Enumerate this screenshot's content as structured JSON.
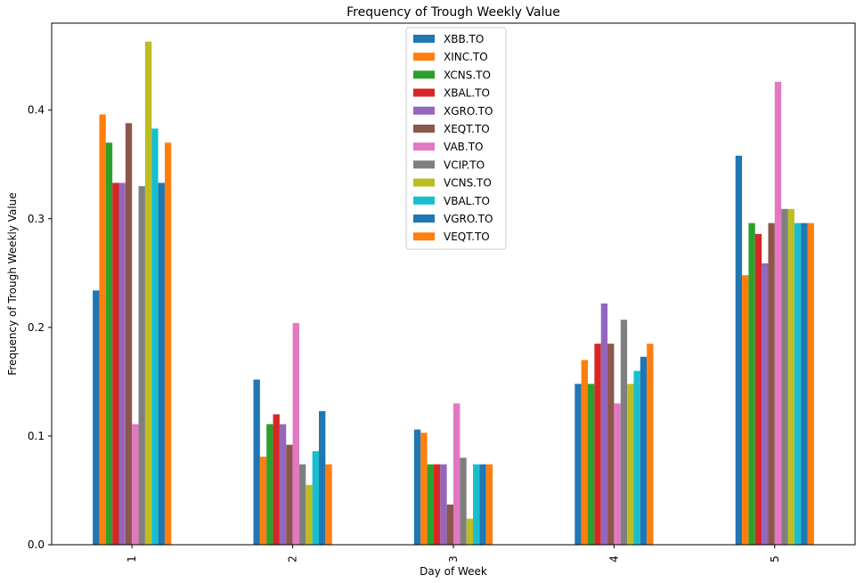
{
  "chart_data": {
    "type": "bar",
    "title": "Frequency of Trough Weekly Value",
    "xlabel": "Day of Week",
    "ylabel": "Frequency of Trough Weekly Value",
    "categories": [
      "1",
      "2",
      "3",
      "4",
      "5"
    ],
    "ylim": [
      0,
      0.48
    ],
    "yticks": [
      "0.0",
      "0.1",
      "0.2",
      "0.3",
      "0.4"
    ],
    "grid": false,
    "legend_position": "top-center",
    "series": [
      {
        "name": "XBB.TO",
        "color": "#1f77b4",
        "values": [
          0.234,
          0.152,
          0.106,
          0.148,
          0.358
        ]
      },
      {
        "name": "XINC.TO",
        "color": "#ff7f0e",
        "values": [
          0.396,
          0.081,
          0.103,
          0.17,
          0.248
        ]
      },
      {
        "name": "XCNS.TO",
        "color": "#2ca02c",
        "values": [
          0.37,
          0.111,
          0.074,
          0.148,
          0.296
        ]
      },
      {
        "name": "XBAL.TO",
        "color": "#d62728",
        "values": [
          0.333,
          0.12,
          0.074,
          0.185,
          0.286
        ]
      },
      {
        "name": "XGRO.TO",
        "color": "#9467bd",
        "values": [
          0.333,
          0.111,
          0.074,
          0.222,
          0.259
        ]
      },
      {
        "name": "XEQT.TO",
        "color": "#8c564b",
        "values": [
          0.388,
          0.092,
          0.037,
          0.185,
          0.296
        ]
      },
      {
        "name": "VAB.TO",
        "color": "#e377c2",
        "values": [
          0.111,
          0.204,
          0.13,
          0.13,
          0.426
        ]
      },
      {
        "name": "VCIP.TO",
        "color": "#7f7f7f",
        "values": [
          0.33,
          0.074,
          0.08,
          0.207,
          0.309
        ]
      },
      {
        "name": "VCNS.TO",
        "color": "#bcbd22",
        "values": [
          0.463,
          0.055,
          0.024,
          0.148,
          0.309
        ]
      },
      {
        "name": "VBAL.TO",
        "color": "#17becf",
        "values": [
          0.383,
          0.086,
          0.074,
          0.16,
          0.296
        ]
      },
      {
        "name": "VGRO.TO",
        "color": "#1f77b4",
        "values": [
          0.333,
          0.123,
          0.074,
          0.173,
          0.296
        ]
      },
      {
        "name": "VEQT.TO",
        "color": "#ff7f0e",
        "values": [
          0.37,
          0.074,
          0.074,
          0.185,
          0.296
        ]
      }
    ]
  }
}
